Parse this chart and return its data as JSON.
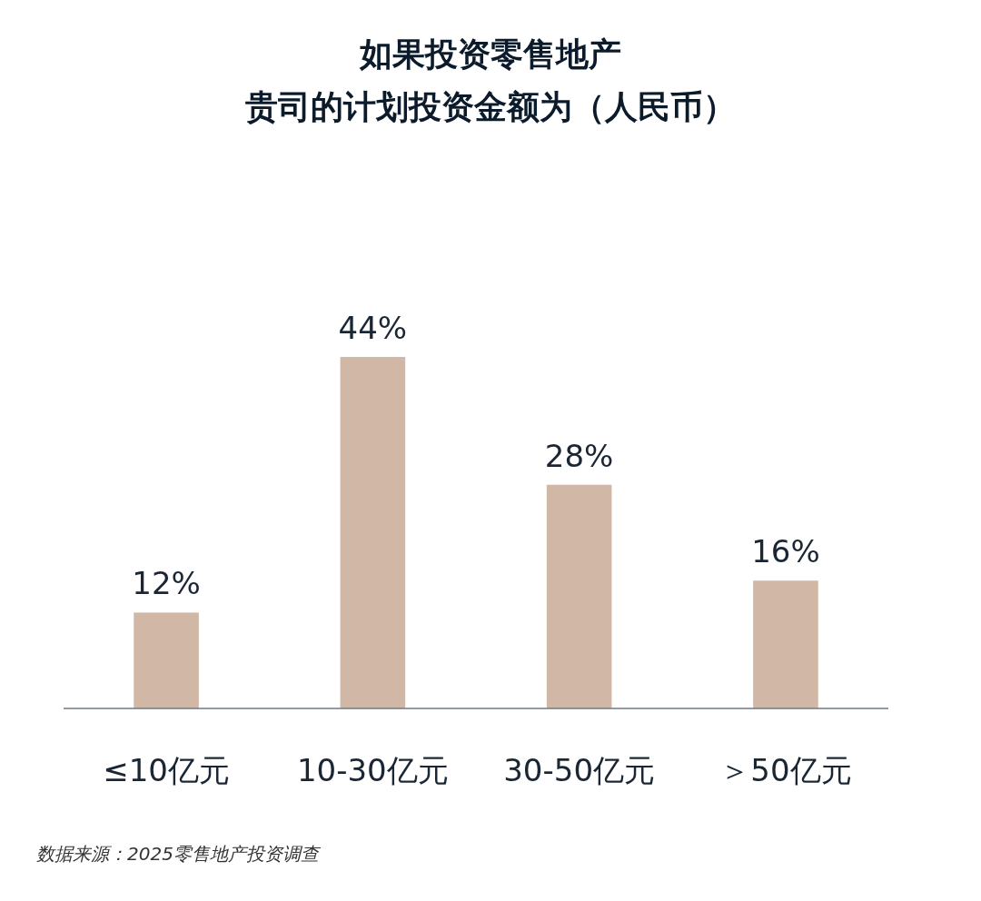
{
  "chart_data": {
    "type": "bar",
    "title": "如果投资零售地产",
    "subtitle": "贵司的计划投资金额为（人民币）",
    "categories": [
      "≤10亿元",
      "10-30亿元",
      "30-50亿元",
      "＞50亿元"
    ],
    "values": [
      12,
      44,
      28,
      16
    ],
    "value_labels": [
      "12%",
      "44%",
      "28%",
      "16%"
    ],
    "color": "#d1b8a6",
    "annotations": [
      "数据来源：2025零售地产投资调查"
    ]
  }
}
